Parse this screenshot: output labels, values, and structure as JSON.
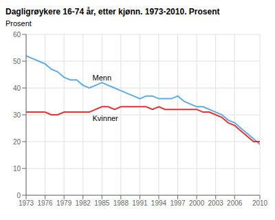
{
  "chart_data": {
    "type": "line",
    "title": "Dagligrøykere 16-74 år, etter kjønn. 1973-2010. Prosent",
    "ylabel": "Prosent",
    "x": [
      1973,
      1974,
      1975,
      1976,
      1977,
      1978,
      1979,
      1980,
      1981,
      1982,
      1983,
      1984,
      1985,
      1986,
      1987,
      1988,
      1989,
      1990,
      1991,
      1992,
      1993,
      1994,
      1995,
      1996,
      1997,
      1998,
      1999,
      2000,
      2001,
      2002,
      2003,
      2004,
      2005,
      2006,
      2007,
      2008,
      2009,
      2010
    ],
    "series": [
      {
        "color": "#5aace4",
        "values": [
          52,
          51,
          50,
          49,
          47,
          46,
          44,
          43,
          43,
          41,
          40,
          41,
          42,
          41,
          40,
          39,
          38,
          37,
          36,
          37,
          37,
          36,
          36,
          36,
          37,
          35,
          34,
          33,
          33,
          32,
          31,
          30,
          28,
          27,
          25,
          23,
          21,
          19
        ]
      },
      {
        "color": "#e83030",
        "values": [
          31,
          31,
          31,
          31,
          30,
          30,
          31,
          31,
          31,
          31,
          31,
          32,
          33,
          33,
          32,
          33,
          33,
          33,
          33,
          33,
          32,
          33,
          32,
          32,
          32,
          32,
          32,
          32,
          31,
          31,
          30,
          29,
          27,
          26,
          24,
          22,
          20,
          20
        ]
      }
    ],
    "annotations": [
      {
        "text": "Menn",
        "x": 1983.5,
        "y": 43.5
      },
      {
        "text": "Kvinner",
        "x": 1983.5,
        "y": 28.5
      }
    ],
    "xlim": [
      1973,
      2010
    ],
    "xticks": [
      1973,
      1976,
      1979,
      1982,
      1985,
      1988,
      1991,
      1994,
      1997,
      2000,
      2003,
      2006,
      2010
    ],
    "ylim": [
      0,
      60
    ],
    "yticks": [
      0,
      10,
      20,
      30,
      40,
      50,
      60
    ],
    "grid": true
  }
}
